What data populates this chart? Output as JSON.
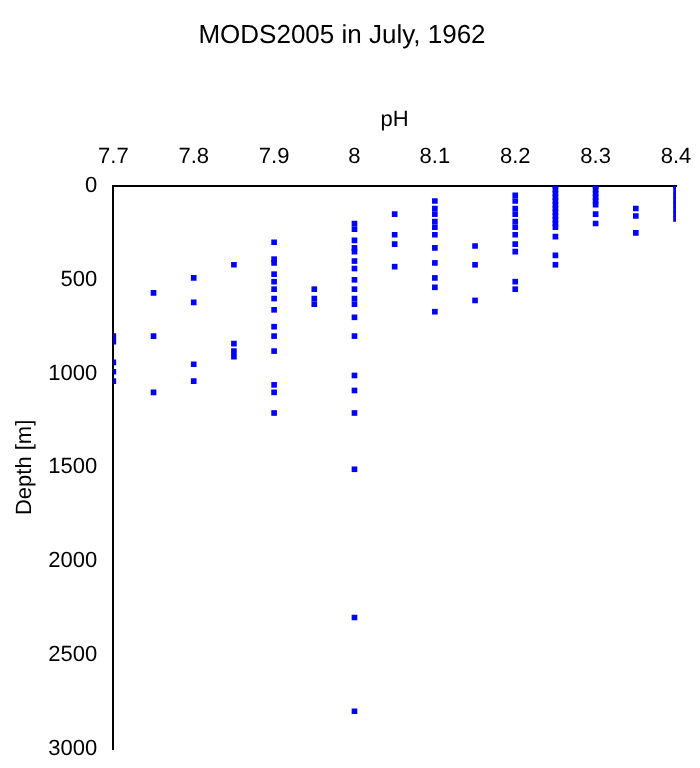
{
  "chart_data": {
    "type": "scatter",
    "title": "MODS2005 in July, 1962",
    "xlabel": "pH",
    "ylabel": "Depth [m]",
    "x": [
      7.7,
      7.7,
      7.7,
      7.7,
      7.7,
      7.75,
      7.75,
      7.75,
      7.8,
      7.8,
      7.8,
      7.8,
      7.85,
      7.85,
      7.85,
      7.85,
      7.9,
      7.9,
      7.9,
      7.9,
      7.9,
      7.9,
      7.9,
      7.9,
      7.9,
      7.9,
      7.9,
      7.9,
      7.9,
      7.9,
      7.95,
      7.95,
      7.95,
      8,
      8,
      8,
      8,
      8,
      8,
      8,
      8,
      8,
      8,
      8,
      8,
      8,
      8,
      8,
      8,
      8,
      8,
      8,
      8.05,
      8.05,
      8.05,
      8.05,
      8.1,
      8.1,
      8.1,
      8.1,
      8.1,
      8.1,
      8.1,
      8.1,
      8.1,
      8.1,
      8.1,
      8.15,
      8.15,
      8.15,
      8.2,
      8.2,
      8.2,
      8.2,
      8.2,
      8.2,
      8.2,
      8.2,
      8.2,
      8.2,
      8.2,
      8.25,
      8.25,
      8.25,
      8.25,
      8.25,
      8.25,
      8.25,
      8.25,
      8.25,
      8.25,
      8.25,
      8.25,
      8.25,
      8.25,
      8.25,
      8.3,
      8.3,
      8.3,
      8.3,
      8.3,
      8.3,
      8.3,
      8.3,
      8.35,
      8.35,
      8.35,
      8.4,
      8.4,
      8.4,
      8.4,
      8.4,
      8.4,
      8.4,
      8.4
    ],
    "values": [
      800,
      830,
      940,
      990,
      1040,
      570,
      800,
      1100,
      490,
      620,
      950,
      1040,
      420,
      840,
      880,
      910,
      300,
      390,
      410,
      470,
      510,
      550,
      600,
      660,
      750,
      800,
      880,
      1060,
      1100,
      1210,
      550,
      600,
      630,
      200,
      230,
      290,
      330,
      350,
      400,
      440,
      500,
      550,
      600,
      630,
      700,
      800,
      1010,
      1090,
      1210,
      1510,
      2300,
      2800,
      150,
      260,
      310,
      430,
      80,
      120,
      150,
      190,
      220,
      260,
      330,
      410,
      490,
      540,
      670,
      320,
      420,
      610,
      50,
      80,
      120,
      150,
      190,
      220,
      260,
      310,
      350,
      510,
      550,
      0,
      20,
      40,
      60,
      80,
      100,
      120,
      140,
      160,
      180,
      200,
      220,
      270,
      370,
      420,
      0,
      20,
      40,
      60,
      80,
      100,
      150,
      200,
      120,
      160,
      250,
      0,
      25,
      50,
      75,
      100,
      125,
      150,
      175
    ],
    "color": "#0000ff",
    "marker": "square",
    "grid": false,
    "xlim": [
      7.7,
      8.4
    ],
    "xticks": [
      7.7,
      7.8,
      7.9,
      8,
      8.1,
      8.2,
      8.3,
      8.4
    ],
    "ylim": [
      3000,
      0
    ],
    "yticks": [
      0,
      500,
      1000,
      1500,
      2000,
      2500,
      3000
    ]
  }
}
